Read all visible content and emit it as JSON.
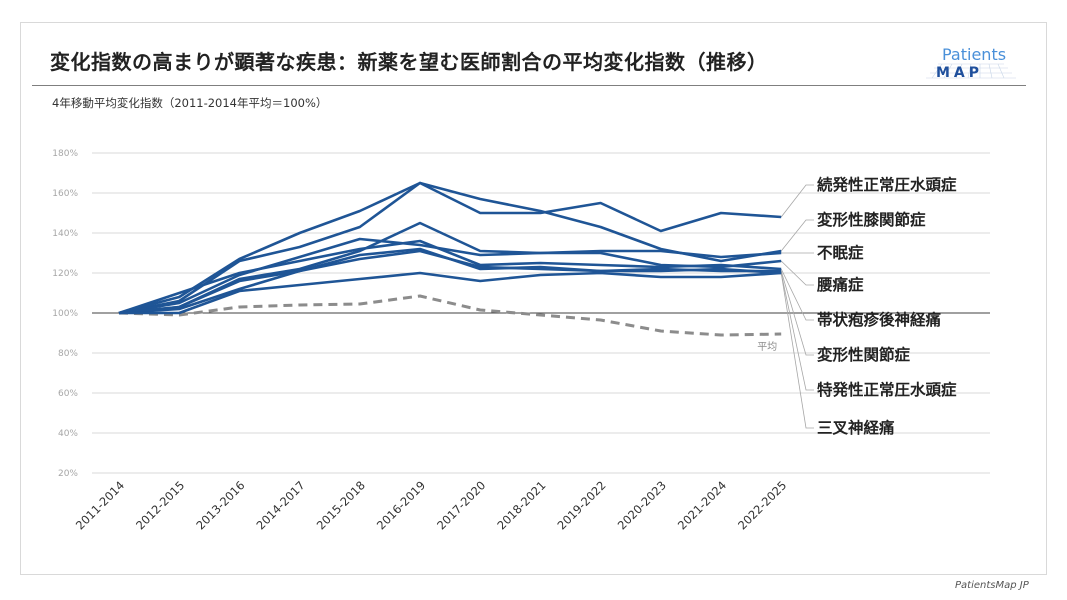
{
  "header": {
    "title": "変化指数の高まりが顕著な疾患：新薬を望む医師割合の平均変化指数（推移）",
    "subtitle": "4年移動平均変化指数（2011-2014年平均＝100%）",
    "logo_text": "Patients",
    "logo_sub": "MAP"
  },
  "footer": {
    "credit": "PatientsMap JP"
  },
  "colors": {
    "series": "#1f5596",
    "average": "#8c8c8c",
    "grid": "#d9d9d9",
    "baseline": "#404040",
    "leader": "#a6a6a6"
  },
  "chart_data": {
    "type": "line",
    "title": "変化指数の高まりが顕著な疾患：新薬を望む医師割合の平均変化指数（推移）",
    "ylabel": "4年移動平均変化指数（2011-2014年平均＝100%）",
    "xlabel": "",
    "ylim": [
      20,
      180
    ],
    "yticks": [
      20,
      40,
      60,
      80,
      100,
      120,
      140,
      160,
      180
    ],
    "ytick_labels": [
      "20%",
      "40%",
      "60%",
      "80%",
      "100%",
      "120%",
      "140%",
      "160%",
      "180%"
    ],
    "grid": true,
    "legend": "right (direct labels with leader lines)",
    "categories": [
      "2011-2014",
      "2012-2015",
      "2013-2016",
      "2014-2017",
      "2015-2018",
      "2016-2019",
      "2017-2020",
      "2018-2021",
      "2019-2022",
      "2020-2023",
      "2021-2024",
      "2022-2025"
    ],
    "series": [
      {
        "name": "続発性正常圧水頭症",
        "values": [
          100,
          106,
          126,
          133,
          143,
          165,
          150,
          150,
          155,
          141,
          150,
          148
        ]
      },
      {
        "name": "変形性膝関節症",
        "values": [
          100,
          108,
          127,
          140,
          151,
          165,
          157,
          151,
          143,
          132,
          126,
          131
        ]
      },
      {
        "name": "不眠症",
        "values": [
          100,
          105,
          119,
          128,
          137,
          134,
          129,
          130,
          131,
          131,
          128,
          130
        ]
      },
      {
        "name": "腰痛症",
        "values": [
          100,
          103,
          117,
          122,
          131,
          145,
          131,
          130,
          130,
          124,
          123,
          126
        ]
      },
      {
        "name": "帯状疱疹後神経痛",
        "values": [
          100,
          110,
          120,
          126,
          132,
          136,
          124,
          125,
          124,
          123,
          124,
          122
        ]
      },
      {
        "name": "変形性関節症",
        "values": [
          100,
          102,
          112,
          121,
          129,
          132,
          122,
          123,
          121,
          122,
          121,
          121
        ]
      },
      {
        "name": "特発性正常圧水頭症",
        "values": [
          100,
          103,
          116,
          121,
          127,
          131,
          123,
          122,
          121,
          121,
          122,
          120
        ]
      },
      {
        "name": "三叉神経痛",
        "values": [
          100,
          100,
          111,
          114,
          117,
          120,
          116,
          119,
          120,
          118,
          118,
          120
        ]
      }
    ],
    "average": {
      "name": "平均",
      "style": "dashed",
      "values": [
        100,
        99,
        103,
        104,
        104.5,
        108.5,
        101.5,
        99,
        96.5,
        91,
        89,
        89.5
      ]
    }
  }
}
